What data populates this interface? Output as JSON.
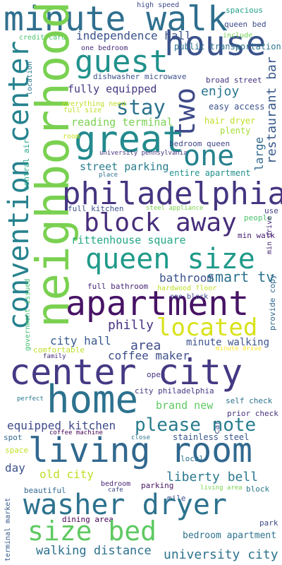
{
  "words": [
    {
      "text": "minute walk",
      "color": "#2f6f8e"
    },
    {
      "text": "high speed",
      "color": "#3d4a89"
    },
    {
      "text": "spacious",
      "color": "#1f9e89"
    },
    {
      "text": "queen bed",
      "color": "#3e4a89"
    },
    {
      "text": "credit card",
      "color": "#4ac16d"
    },
    {
      "text": "house",
      "color": "#3a538b"
    },
    {
      "text": "include",
      "color": "#75d054"
    },
    {
      "text": "independence hall",
      "color": "#3b528b"
    },
    {
      "text": "public transportation",
      "color": "#2c728e"
    },
    {
      "text": "one bedroom",
      "color": "#472c7a"
    },
    {
      "text": "guest",
      "color": "#21918c"
    },
    {
      "text": "dishwasher microwave",
      "color": "#3b528b"
    },
    {
      "text": "broad street",
      "color": "#46327e"
    },
    {
      "text": "neighborhood",
      "color": "#7ad151"
    },
    {
      "text": "fully equipped",
      "color": "#453781"
    },
    {
      "text": "enjoy",
      "color": "#2a768e"
    },
    {
      "text": "stay",
      "color": "#2c728e"
    },
    {
      "text": "everything need",
      "color": "#bddf26"
    },
    {
      "text": "two",
      "color": "#3e4a89"
    },
    {
      "text": "easy access",
      "color": "#3b528b"
    },
    {
      "text": "restaurant bar",
      "color": "#38598c"
    },
    {
      "text": "full size",
      "color": "#bddf26"
    },
    {
      "text": "reading terminal",
      "color": "#7ad151"
    },
    {
      "text": "hair dryer",
      "color": "#bddf26"
    },
    {
      "text": "great",
      "color": "#238a8d"
    },
    {
      "text": "plenty",
      "color": "#a5db36"
    },
    {
      "text": "convention center",
      "color": "#26828e"
    },
    {
      "text": "room",
      "color": "#c8e020"
    },
    {
      "text": "location",
      "color": "#2a788e"
    },
    {
      "text": "bedroom queen",
      "color": "#404688"
    },
    {
      "text": "central air",
      "color": "#20a386"
    },
    {
      "text": "university pennsylvania",
      "color": "#46327e"
    },
    {
      "text": "one",
      "color": "#26828e"
    },
    {
      "text": "large",
      "color": "#31688e"
    },
    {
      "text": "street parking",
      "color": "#287d8e"
    },
    {
      "text": "place",
      "color": "#2d708e"
    },
    {
      "text": "entire apartment",
      "color": "#21918c"
    },
    {
      "text": "philadelphia",
      "color": "#453581"
    },
    {
      "text": "full kitchen",
      "color": "#3b528b"
    },
    {
      "text": "steel appliance",
      "color": "#7ad151"
    },
    {
      "text": "use",
      "color": "#433e85"
    },
    {
      "text": "block away",
      "color": "#472d7b"
    },
    {
      "text": "people",
      "color": "#4ac16d"
    },
    {
      "text": "rittenhouse square",
      "color": "#22a785"
    },
    {
      "text": "min walk",
      "color": "#482173"
    },
    {
      "text": "min drive",
      "color": "#482878"
    },
    {
      "text": "queen size",
      "color": "#1f9a8a"
    },
    {
      "text": "bathroom",
      "color": "#3b528b"
    },
    {
      "text": "smart tv",
      "color": "#2c718e"
    },
    {
      "text": "government issued",
      "color": "#44bf70"
    },
    {
      "text": "provide copy",
      "color": "#31688e"
    },
    {
      "text": "full bathroom",
      "color": "#482475"
    },
    {
      "text": "hardwood floor",
      "color": "#bddf26"
    },
    {
      "text": "apartment",
      "color": "#471365"
    },
    {
      "text": "one block",
      "color": "#3e4a89"
    },
    {
      "text": "located",
      "color": "#d8e219"
    },
    {
      "text": "philly",
      "color": "#46327e"
    },
    {
      "text": "area",
      "color": "#3e4c8a"
    },
    {
      "text": "city hall",
      "color": "#375a8c"
    },
    {
      "text": "minute walking",
      "color": "#3b528b"
    },
    {
      "text": "comfortable",
      "color": "#bddf26"
    },
    {
      "text": "coffee maker",
      "color": "#3d4e8a"
    },
    {
      "text": "minute drive",
      "color": "#fde725"
    },
    {
      "text": "family",
      "color": "#472c7a"
    },
    {
      "text": "center city",
      "color": "#443983"
    },
    {
      "text": "open",
      "color": "#46337f"
    },
    {
      "text": "city philadelphia",
      "color": "#453781"
    },
    {
      "text": "home",
      "color": "#2c728e"
    },
    {
      "text": "perfect",
      "color": "#2a788e"
    },
    {
      "text": "brand new",
      "color": "#5ec962"
    },
    {
      "text": "self check",
      "color": "#2c728e"
    },
    {
      "text": "prior check",
      "color": "#46327e"
    },
    {
      "text": "car",
      "color": "#3f4889"
    },
    {
      "text": "equipped kitchen",
      "color": "#3e4a89"
    },
    {
      "text": "please note",
      "color": "#287c8e"
    },
    {
      "text": "spot",
      "color": "#31688e"
    },
    {
      "text": "coffee machine",
      "color": "#440154"
    },
    {
      "text": "close",
      "color": "#2a768e"
    },
    {
      "text": "stainless steel",
      "color": "#39568c"
    },
    {
      "text": "space",
      "color": "#c2df23"
    },
    {
      "text": "living room",
      "color": "#31688e"
    },
    {
      "text": "day",
      "color": "#3b528b"
    },
    {
      "text": "local",
      "color": "#2c728e"
    },
    {
      "text": "old city",
      "color": "#bddf26"
    },
    {
      "text": "liberty bell",
      "color": "#2a788e"
    },
    {
      "text": "beautiful",
      "color": "#31688e"
    },
    {
      "text": "bedroom",
      "color": "#482475"
    },
    {
      "text": "parking",
      "color": "#471365"
    },
    {
      "text": "cafe",
      "color": "#3e4a89"
    },
    {
      "text": "living area",
      "color": "#7ad151"
    },
    {
      "text": "block",
      "color": "#2a788e"
    },
    {
      "text": "mile",
      "color": "#3b528b"
    },
    {
      "text": "washer dryer",
      "color": "#2c728e"
    },
    {
      "text": "dining area",
      "color": "#440154"
    },
    {
      "text": "terminal market",
      "color": "#375a8c"
    },
    {
      "text": "size bed",
      "color": "#5ec962"
    },
    {
      "text": "park",
      "color": "#3e4a89"
    },
    {
      "text": "bedroom apartment",
      "color": "#2c728e"
    },
    {
      "text": "walking distance",
      "color": "#2d708e"
    },
    {
      "text": "university city",
      "color": "#2c728e"
    }
  ]
}
